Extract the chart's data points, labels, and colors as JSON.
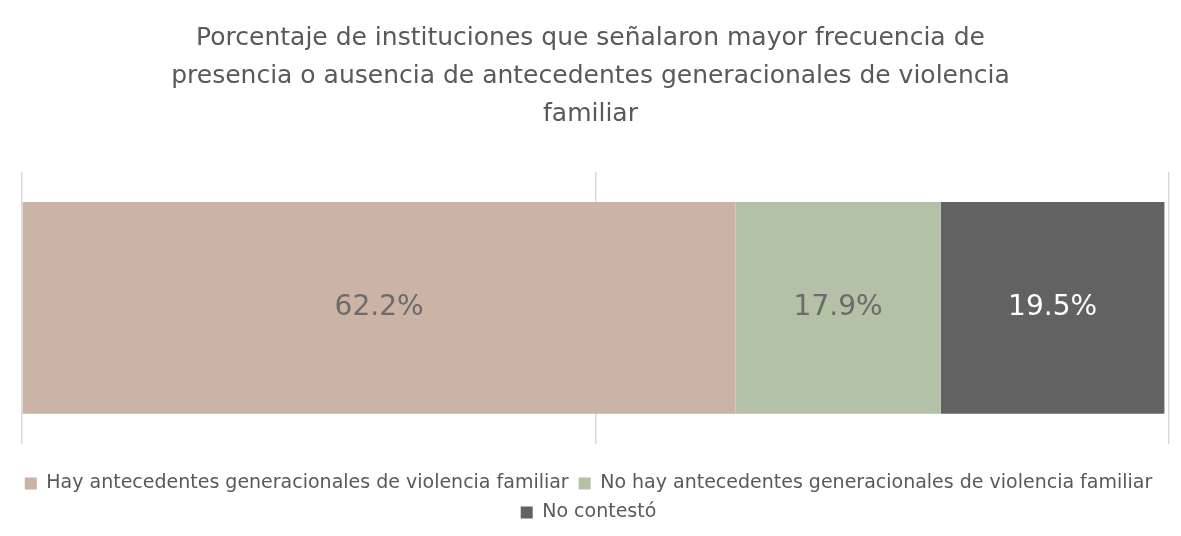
{
  "chart_data": {
    "type": "bar",
    "orientation": "horizontal",
    "stacked": true,
    "title": "Porcentaje de instituciones que señalaron mayor frecuencia de presencia o ausencia de antecedentes generacionales de violencia familiar",
    "categories": [
      null
    ],
    "series": [
      {
        "name": "Hay antecedentes generacionales de violencia familiar",
        "color": "#cbb3a6",
        "values": [
          62.2
        ],
        "value_labels": [
          "62.2%"
        ]
      },
      {
        "name": "No hay antecedentes generacionales de violencia familiar",
        "color": "#b3c2a6",
        "values": [
          17.9
        ],
        "value_labels": [
          "17.9%"
        ]
      },
      {
        "name": "No contestó",
        "color": "#626262",
        "values": [
          19.5
        ],
        "value_labels": [
          "19.5%"
        ]
      }
    ],
    "xlim": [
      0,
      100
    ],
    "xticks": [
      {
        "value": 0,
        "label": null
      },
      {
        "value": 50,
        "label": null
      },
      {
        "value": 100,
        "label": null
      }
    ],
    "grid": "x",
    "legend": "bottom"
  }
}
